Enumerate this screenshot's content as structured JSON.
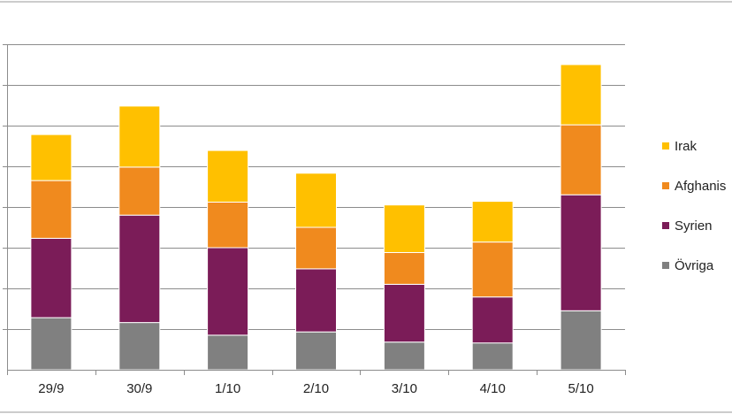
{
  "chart_data": {
    "type": "bar",
    "stacked": true,
    "categories": [
      "29/9",
      "30/9",
      "1/10",
      "2/10",
      "3/10",
      "4/10",
      "5/10"
    ],
    "series": [
      {
        "name": "Övriga",
        "color": "#808080",
        "values": [
          1.28,
          1.16,
          0.85,
          0.93,
          0.68,
          0.66,
          1.45
        ]
      },
      {
        "name": "Syrien",
        "color": "#7b1c58",
        "values": [
          1.95,
          2.64,
          2.15,
          1.55,
          1.42,
          1.13,
          2.85
        ]
      },
      {
        "name": "Afghanis",
        "color": "#f08a1e",
        "values": [
          1.42,
          1.18,
          1.12,
          1.02,
          0.78,
          1.35,
          1.72
        ]
      },
      {
        "name": "Irak",
        "color": "#ffc000",
        "values": [
          1.13,
          1.5,
          1.27,
          1.33,
          1.17,
          1.0,
          1.48
        ]
      }
    ],
    "ylim": [
      0,
      8
    ],
    "ytick_step": 1,
    "grid": true,
    "legend_position": "right",
    "legend_order": [
      "Irak",
      "Afghanis",
      "Syrien",
      "Övriga"
    ],
    "title": "",
    "xlabel": "",
    "ylabel": ""
  }
}
